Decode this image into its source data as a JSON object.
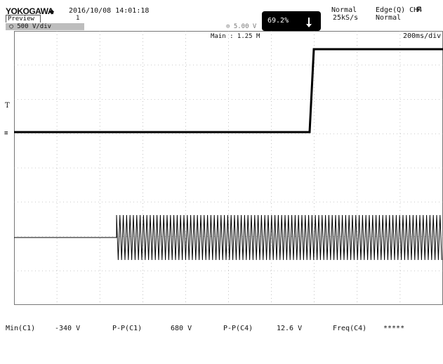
{
  "header": {
    "brand": "YOKOGAWA",
    "brand_icon": "diamond-icon",
    "datetime": "2016/10/08 14:01:18",
    "mode_tab": "Preview",
    "mode_number": "1",
    "acquisition_mode": "Normal",
    "sample_rate": "25kS/s",
    "trigger_label": "Edge(Q) CH4",
    "trigger_icon": "rising-edge-icon",
    "trigger_mode": "Normal",
    "zoom_percent": "69.2%",
    "channel_scale": "500 V/div",
    "channel_scale_right": "5.00 V",
    "main_label": "Main : 1.25 M",
    "timebase": "200ms/div",
    "marker": "T"
  },
  "measurements": [
    {
      "label": "Min(C1)",
      "value": "-340 V"
    },
    {
      "label": "P-P(C1)",
      "value": "680 V"
    },
    {
      "label": "P-P(C4)",
      "value": "12.6 V"
    },
    {
      "label": "Freq(C4)",
      "value": "*****"
    }
  ],
  "colors": {
    "trace": "#000000",
    "grid": "#9a9a9a",
    "zoom_badge": "#000000"
  }
}
